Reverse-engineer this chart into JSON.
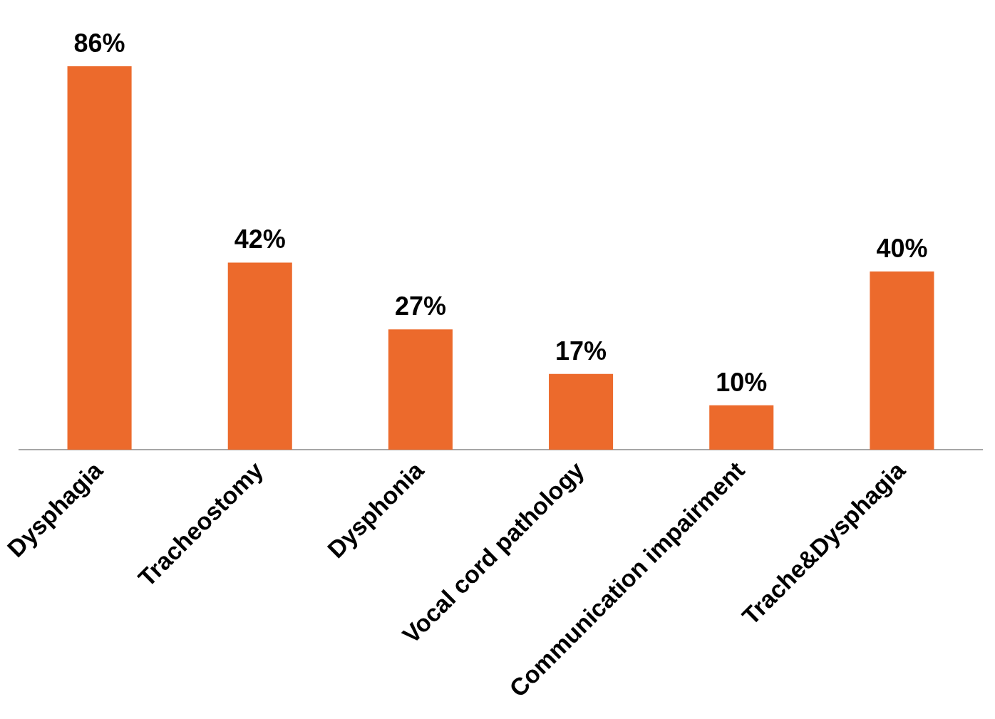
{
  "chart_data": {
    "type": "bar",
    "categories": [
      "Dysphagia",
      "Tracheostomy",
      "Dysphonia",
      "Vocal cord pathology",
      "Communication impairment",
      "Trache&Dysphagia"
    ],
    "values": [
      86,
      42,
      27,
      17,
      10,
      40
    ],
    "value_labels": [
      "86%",
      "42%",
      "27%",
      "17%",
      "10%",
      "40%"
    ],
    "color": "#ec6a2c",
    "grid": false,
    "legend": false,
    "tick_labels": "x"
  }
}
